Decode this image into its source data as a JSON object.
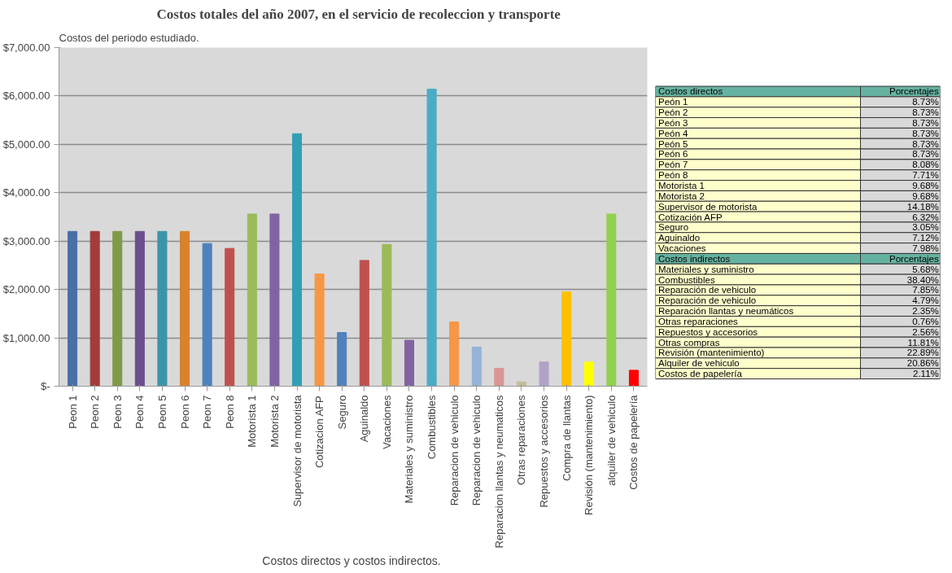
{
  "chart_data": [
    {
      "type": "bar",
      "title": "Costos totales del año 2007, en el servicio de recoleccion y transporte",
      "subtitle": "Costos del periodo estudiado.",
      "xlabel": "Costos  directos y costos indirectos.",
      "categories": [
        "Peon 1",
        "Peon 2",
        "Peon 3",
        "Peon 4",
        "Peon 5",
        "Peon 6",
        "Peon 7",
        "Peon 8",
        "Motorista 1",
        "Motorista 2",
        "Supervisor de motorista",
        "Cotizacion AFP",
        "Seguro",
        "Aguinaldo",
        "Vacaciones",
        "Materiales y suministro",
        "Combustibles",
        "Reparacion de vehiculo",
        "Reparacion de vehiculo",
        "Reparacion llantas y neumaticos",
        "Otras reparaciones",
        "Repuestos y accesorios",
        "Compra de llantas",
        "Revisión (mantenimiento)",
        "alquiler de vehiculo",
        "Costos de papelería"
      ],
      "values": [
        3200,
        3200,
        3200,
        3200,
        3200,
        3200,
        2950,
        2850,
        3560,
        3560,
        5220,
        2320,
        1110,
        2600,
        2930,
        950,
        6140,
        1330,
        810,
        370,
        90,
        500,
        1950,
        500,
        3560,
        330
      ],
      "colors": [
        "#4a6fa5",
        "#a33c3a",
        "#7f9a48",
        "#6a4f8c",
        "#3b95a8",
        "#d9822b",
        "#4f81bd",
        "#c0504d",
        "#9bbb59",
        "#8064a2",
        "#31a0b4",
        "#f79646",
        "#4f81bd",
        "#c0504d",
        "#9bbb59",
        "#8064a2",
        "#4bacc6",
        "#f79646",
        "#95b3d7",
        "#d99694",
        "#c4bd97",
        "#b3a2c7",
        "#ffc000",
        "#ffff00",
        "#92d050",
        "#ff0000"
      ],
      "ylim": [
        0,
        7000
      ],
      "yticks": [
        {
          "value": 0,
          "label": "$-"
        },
        {
          "value": 1000,
          "label": "$1,000.00"
        },
        {
          "value": 2000,
          "label": "$2,000.00"
        },
        {
          "value": 3000,
          "label": "$3,000.00"
        },
        {
          "value": 4000,
          "label": "$4,000.00"
        },
        {
          "value": 5000,
          "label": "$5,000.00"
        },
        {
          "value": 6000,
          "label": "$6,000.00"
        },
        {
          "value": 7000,
          "label": "$7,000.00"
        }
      ],
      "grid": "y"
    },
    {
      "type": "other",
      "categories": [
        "Costos directos",
        "Peón 1",
        "Peón 2",
        "Peón 3",
        "Peón 4",
        "Peón 5",
        "Peón 6",
        "Peón 7",
        "Peón 8",
        "Motorista 1",
        "Motorista 2",
        "Supervisor de motorista",
        "Cotización AFP",
        "Seguro",
        "Aguinaldo",
        "Vacaciones",
        "Costos indirectos",
        "Materiales y suministro",
        "Combustibles",
        "Reparación de vehiculo",
        "Reparación de vehiculo",
        "Reparación llantas y neumáticos",
        "Otras reparaciones",
        "Repuestos y accesorios",
        "Otras compras",
        "Revisión (mantenimiento)",
        "Alquiler de vehiculo",
        "Costos de papelería"
      ],
      "values": [
        null,
        8.73,
        8.73,
        8.73,
        8.73,
        8.73,
        8.73,
        8.08,
        7.71,
        9.68,
        9.68,
        14.18,
        6.32,
        3.05,
        7.12,
        7.98,
        null,
        5.68,
        38.4,
        7.85,
        4.79,
        2.35,
        0.76,
        2.56,
        11.81,
        22.89,
        20.86,
        2.11
      ],
      "value_labels": [
        "Porcentajes",
        "8.73%",
        "8.73%",
        "8.73%",
        "8.73%",
        "8.73%",
        "8.73%",
        "8.08%",
        "7.71%",
        "9.68%",
        "9.68%",
        "14.18%",
        "6.32%",
        "3.05%",
        "7.12%",
        "7.98%",
        "Porcentajes",
        "5.68%",
        "38.40%",
        "7.85%",
        "4.79%",
        "2.35%",
        "0.76%",
        "2.56%",
        "11.81%",
        "22.89%",
        "20.86%",
        "2.11%"
      ]
    }
  ]
}
